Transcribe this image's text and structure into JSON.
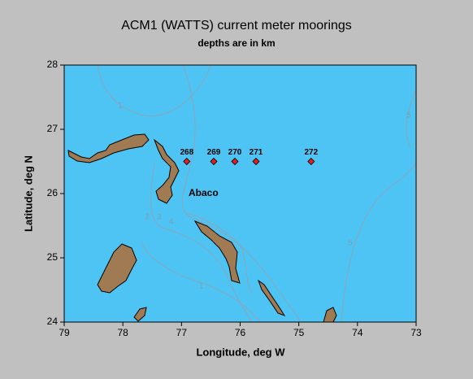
{
  "chart_data": {
    "type": "scatter",
    "title": "ACM1 (WATTS) current meter moorings",
    "subtitle": "depths are in km",
    "x_label": "Longitude, deg W",
    "y_label": "Latitude, deg N",
    "labels": [
      "268",
      "269",
      "270",
      "271",
      "272"
    ],
    "x": [
      76.91,
      76.45,
      76.09,
      75.73,
      74.79
    ],
    "y": [
      26.5,
      26.5,
      26.5,
      26.5,
      26.5
    ],
    "color": "#e02020",
    "annotation": "Abaco",
    "contour_labels": [
      1,
      2,
      3,
      4,
      1,
      5,
      5
    ],
    "xlim": [
      79,
      73
    ],
    "ylim": [
      24,
      28
    ],
    "xticks": [
      79,
      78,
      77,
      76,
      75,
      74,
      73
    ],
    "yticks": [
      24,
      25,
      26,
      27,
      28
    ]
  }
}
